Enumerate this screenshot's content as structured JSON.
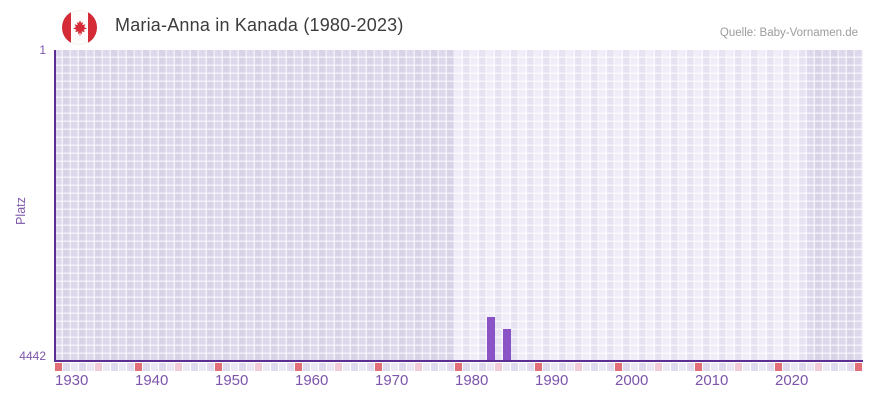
{
  "header": {
    "title": "Maria-Anna in Kanada (1980-2023)",
    "source": "Quelle: Baby-Vornamen.de"
  },
  "y_axis": {
    "title": "Platz",
    "top_label": "1",
    "bottom_label": "4442"
  },
  "chart_data": {
    "type": "bar",
    "title": "Maria-Anna in Kanada (1980-2023)",
    "ylabel": "Platz",
    "xlabel": "",
    "y_inverted": true,
    "ylim": [
      1,
      4442
    ],
    "x_range": [
      1930,
      2030
    ],
    "x_tick_labels": [
      "1930",
      "1940",
      "1950",
      "1960",
      "1970",
      "1980",
      "1990",
      "2000",
      "2010",
      "2020"
    ],
    "highlight_period": {
      "start": 1980,
      "end": 2023
    },
    "series": [
      {
        "name": "Platz",
        "points": [
          {
            "year": 1984,
            "rank": 3820
          },
          {
            "year": 1986,
            "rank": 4000
          }
        ]
      }
    ],
    "bottom_strip": {
      "decade_marker_years": [
        1930,
        1940,
        1950,
        1960,
        1970,
        1980,
        1990,
        2000,
        2010,
        2020,
        2030
      ],
      "half_decade_marker_years": [
        1935,
        1945,
        1955,
        1965,
        1975,
        1985,
        1995,
        2005,
        2015,
        2025
      ]
    },
    "legend": null,
    "grid": "checkerboard"
  },
  "colors": {
    "bar": "#8b54c6",
    "axis_line": "#5c2e91",
    "tick_label": "#7d55ab",
    "title_text": "#3c3c3c",
    "source_text": "#9c9c9c",
    "decade_marker": "#e26e78",
    "half_decade_marker": "#f0cbd6",
    "strip_even": "#ebe7f4",
    "strip_odd": "#e0daed",
    "flag_red": "#d52b36"
  }
}
